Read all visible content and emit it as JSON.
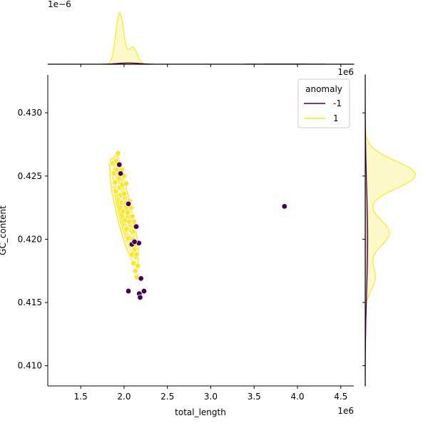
{
  "chart_data": {
    "type": "scatter",
    "xlabel": "total_length",
    "ylabel": "GC_content",
    "x_offset_text": "1e6",
    "y_offset_text": "",
    "top_marginal_offset_text": "1e−6",
    "right_marginal_offset_text": "1e6",
    "xlim": [
      1.12,
      4.65
    ],
    "ylim": [
      0.4084,
      0.433
    ],
    "x_ticks": [
      1.5,
      2.0,
      2.5,
      3.0,
      3.5,
      4.0,
      4.5
    ],
    "x_tick_labels": [
      "1.5",
      "2.0",
      "2.5",
      "3.0",
      "3.5",
      "4.0",
      "4.5"
    ],
    "y_ticks": [
      0.41,
      0.415,
      0.42,
      0.425,
      0.43
    ],
    "y_tick_labels": [
      "0.410",
      "0.415",
      "0.420",
      "0.425",
      "0.430"
    ],
    "legend": {
      "title": "anomaly",
      "placement": "upper-right",
      "entries": [
        {
          "label": "-1",
          "color": "#440154"
        },
        {
          "label": "1",
          "color": "#fde725"
        }
      ]
    },
    "colors": {
      "anomaly_neg": "#440154",
      "anomaly_pos": "#fde725",
      "point_edge": "#ffffff"
    },
    "series": [
      {
        "name": "-1",
        "color": "#440154",
        "points": [
          [
            1.945,
            0.4259
          ],
          [
            1.96,
            0.4252
          ],
          [
            2.05,
            0.4228
          ],
          [
            2.14,
            0.421
          ],
          [
            2.09,
            0.4196
          ],
          [
            2.17,
            0.4197
          ],
          [
            2.12,
            0.4198
          ],
          [
            2.195,
            0.4169
          ],
          [
            2.05,
            0.4159
          ],
          [
            2.175,
            0.4157
          ],
          [
            2.23,
            0.4159
          ],
          [
            2.185,
            0.4154
          ],
          [
            3.85,
            0.4226
          ]
        ]
      },
      {
        "name": "1",
        "color": "#fde725",
        "points": [
          [
            1.87,
            0.426
          ],
          [
            1.88,
            0.4252
          ],
          [
            1.895,
            0.4245
          ],
          [
            1.905,
            0.4238
          ],
          [
            1.91,
            0.4262
          ],
          [
            1.92,
            0.4255
          ],
          [
            1.93,
            0.4268
          ],
          [
            1.94,
            0.4248
          ],
          [
            1.95,
            0.4241
          ],
          [
            1.96,
            0.4235
          ],
          [
            1.97,
            0.4229
          ],
          [
            1.98,
            0.4243
          ],
          [
            1.99,
            0.4222
          ],
          [
            2.0,
            0.4236
          ],
          [
            2.01,
            0.4215
          ],
          [
            2.02,
            0.4229
          ],
          [
            2.03,
            0.4208
          ],
          [
            2.04,
            0.4221
          ],
          [
            2.05,
            0.4201
          ],
          [
            2.06,
            0.4214
          ],
          [
            2.07,
            0.4195
          ],
          [
            2.08,
            0.4207
          ],
          [
            2.09,
            0.4188
          ],
          [
            2.1,
            0.42
          ],
          [
            2.11,
            0.4181
          ],
          [
            2.12,
            0.4192
          ],
          [
            2.13,
            0.4175
          ],
          [
            2.14,
            0.4186
          ],
          [
            2.15,
            0.417
          ],
          [
            2.16,
            0.4179
          ],
          [
            2.0,
            0.425
          ],
          [
            1.975,
            0.4255
          ],
          [
            2.025,
            0.4244
          ],
          [
            2.065,
            0.423
          ],
          [
            2.095,
            0.4218
          ],
          [
            2.105,
            0.4206
          ],
          [
            2.115,
            0.4214
          ],
          [
            2.135,
            0.4196
          ],
          [
            2.145,
            0.4188
          ],
          [
            2.08,
            0.4225
          ]
        ]
      }
    ],
    "marginal_x": {
      "series": [
        {
          "name": "1",
          "color": "#fde725",
          "peaks": [
            {
              "x": 1.95,
              "height": 1.0,
              "width": 0.045
            },
            {
              "x": 2.1,
              "height": 0.33,
              "width": 0.05
            }
          ]
        },
        {
          "name": "-1",
          "color": "#440154",
          "peaks": [
            {
              "x": 2.05,
              "height": 0.025,
              "width": 0.12
            },
            {
              "x": 3.85,
              "height": 0.004,
              "width": 0.3
            }
          ]
        }
      ]
    },
    "marginal_y": {
      "series": [
        {
          "name": "1",
          "color": "#fde725",
          "peaks": [
            {
              "y": 0.4251,
              "height": 1.0,
              "width": 0.0011
            },
            {
              "y": 0.4205,
              "height": 0.48,
              "width": 0.0011
            },
            {
              "y": 0.417,
              "height": 0.2,
              "width": 0.001
            }
          ]
        },
        {
          "name": "-1",
          "color": "#440154",
          "peaks": [
            {
              "y": 0.42,
              "height": 0.05,
              "width": 0.004
            }
          ]
        }
      ]
    }
  }
}
